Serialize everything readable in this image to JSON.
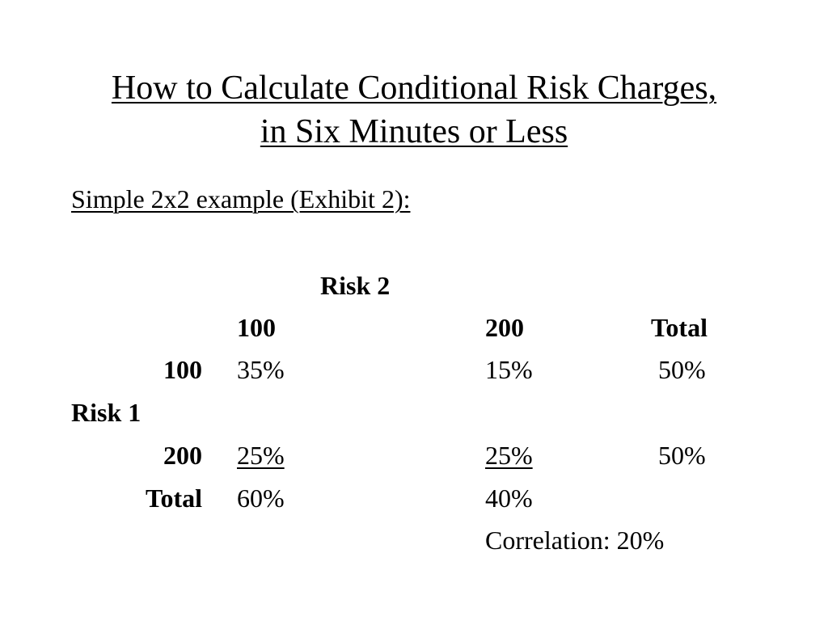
{
  "slide": {
    "title_line1": "How to Calculate Conditional Risk Charges,",
    "title_line2": "in Six Minutes or Less",
    "subtitle": "Simple 2x2 example (Exhibit 2):"
  },
  "table": {
    "column_group_label": "Risk 2",
    "row_group_label": "Risk 1",
    "columns": [
      "100",
      "200",
      "Total"
    ],
    "rows": [
      {
        "label": "100",
        "cells": [
          "35%",
          "15%",
          "50%"
        ]
      },
      {
        "label": "200",
        "cells": [
          "25%",
          "25%",
          "50%"
        ]
      }
    ],
    "total_row": {
      "label": "Total",
      "cells": [
        "60%",
        "40%"
      ]
    },
    "correlation": "Correlation: 20%"
  }
}
